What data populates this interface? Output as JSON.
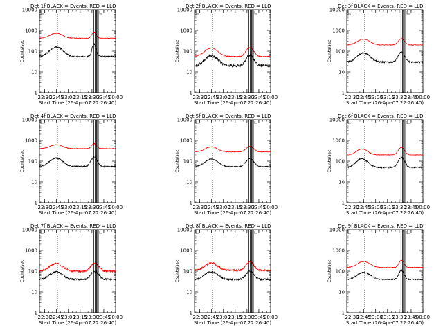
{
  "figure": {
    "start_time_label": "Start Time (26-Apr-07 22:26:40)",
    "ylabel": "Counts/sec",
    "x_tick_labels": [
      "22:30",
      "22:45",
      "23:00",
      "23:15",
      "23:30",
      "23:45",
      "00:00"
    ],
    "y_tick_labels": [
      "1",
      "10",
      "100",
      "1000",
      "10000"
    ]
  },
  "chart_data": [
    {
      "type": "line",
      "title": "Det 1f BLACK = Events, RED = LLD",
      "xlabel": "Start Time (26-Apr-07 22:26:40)",
      "ylabel": "Counts/sec",
      "x_range_min": [
        -3.33,
        93.33
      ],
      "y_log_range": [
        1,
        10000
      ],
      "y_scale": "log",
      "x_ticks_min": [
        3.33,
        18.33,
        33.33,
        48.33,
        63.33,
        78.33,
        93.33
      ],
      "vertical_markers_min": [
        19.5,
        68.6,
        69.4
      ],
      "boxes_min": [
        [
          65.5,
          67.3
        ],
        [
          69.7,
          71.4
        ]
      ],
      "series": [
        {
          "name": "Events",
          "color": "#000000",
          "base": 55,
          "peak1_center": 18,
          "peak1_amp": 1.9,
          "peak1_width": 10,
          "peak2_center": 66,
          "peak2_amp": 3.1,
          "peak2_width": 3,
          "noise": 0.08
        },
        {
          "name": "LLD",
          "color": "#ff0000",
          "base": 420,
          "peak1_center": 18,
          "peak1_amp": 0.75,
          "peak1_width": 10,
          "peak2_center": 66,
          "peak2_amp": 1.0,
          "peak2_width": 3.5,
          "noise": 0.03
        }
      ]
    },
    {
      "type": "line",
      "title": "Det 2f BLACK = Events, RED = LLD",
      "xlabel": "Start Time (26-Apr-07 22:26:40)",
      "ylabel": "Counts/sec",
      "x_range_min": [
        -3.33,
        93.33
      ],
      "y_log_range": [
        1,
        10000
      ],
      "y_scale": "log",
      "x_ticks_min": [
        3.33,
        18.33,
        33.33,
        48.33,
        63.33,
        78.33,
        93.33
      ],
      "vertical_markers_min": [
        19.5,
        68.6,
        69.4
      ],
      "boxes_min": [
        [
          65.5,
          67.3
        ],
        [
          69.7,
          71.4
        ]
      ],
      "series": [
        {
          "name": "Events",
          "color": "#000000",
          "base": 20,
          "peak1_center": 18,
          "peak1_amp": 2.0,
          "peak1_width": 10,
          "peak2_center": 67,
          "peak2_amp": 2.2,
          "peak2_width": 6,
          "noise": 0.14
        },
        {
          "name": "LLD",
          "color": "#ff0000",
          "base": 55,
          "peak1_center": 18,
          "peak1_amp": 1.55,
          "peak1_width": 10,
          "peak2_center": 67,
          "peak2_amp": 1.7,
          "peak2_width": 6,
          "noise": 0.04
        }
      ]
    },
    {
      "type": "line",
      "title": "Det 3f BLACK = Events, RED = LLD",
      "xlabel": "Start Time (26-Apr-07 22:26:40)",
      "ylabel": "Counts/sec",
      "x_range_min": [
        -3.33,
        93.33
      ],
      "y_log_range": [
        1,
        10000
      ],
      "y_scale": "log",
      "x_ticks_min": [
        3.33,
        18.33,
        33.33,
        48.33,
        63.33,
        78.33,
        93.33
      ],
      "vertical_markers_min": [
        19.5,
        68.6,
        69.4
      ],
      "boxes_min": [
        [
          65.5,
          67.3
        ],
        [
          69.7,
          71.4
        ]
      ],
      "series": [
        {
          "name": "Events",
          "color": "#000000",
          "base": 30,
          "peak1_center": 18,
          "peak1_amp": 1.7,
          "peak1_width": 10,
          "peak2_center": 66,
          "peak2_amp": 2.0,
          "peak2_width": 5,
          "noise": 0.08
        },
        {
          "name": "LLD",
          "color": "#ff0000",
          "base": 200,
          "peak1_center": 18,
          "peak1_amp": 0.9,
          "peak1_width": 10,
          "peak2_center": 66,
          "peak2_amp": 1.0,
          "peak2_width": 5,
          "noise": 0.03
        }
      ]
    },
    {
      "type": "line",
      "title": "Det 4f BLACK = Events, RED = LLD",
      "xlabel": "Start Time (26-Apr-07 22:26:40)",
      "ylabel": "Counts/sec",
      "x_range_min": [
        -3.33,
        93.33
      ],
      "y_log_range": [
        1,
        10000
      ],
      "y_scale": "log",
      "x_ticks_min": [
        3.33,
        18.33,
        33.33,
        48.33,
        63.33,
        78.33,
        93.33
      ],
      "vertical_markers_min": [
        19.5,
        68.6,
        69.4
      ],
      "boxes_min": [
        [
          65.5,
          67.3
        ],
        [
          69.7,
          71.4
        ]
      ],
      "series": [
        {
          "name": "Events",
          "color": "#000000",
          "base": 55,
          "peak1_center": 18,
          "peak1_amp": 1.55,
          "peak1_width": 10,
          "peak2_center": 66,
          "peak2_amp": 1.8,
          "peak2_width": 5,
          "noise": 0.07
        },
        {
          "name": "LLD",
          "color": "#ff0000",
          "base": 400,
          "peak1_center": 18,
          "peak1_amp": 0.55,
          "peak1_width": 10,
          "peak2_center": 66,
          "peak2_amp": 0.75,
          "peak2_width": 4,
          "noise": 0.03
        }
      ]
    },
    {
      "type": "line",
      "title": "Det 5f BLACK = Events, RED = LLD",
      "xlabel": "Start Time (26-Apr-07 22:26:40)",
      "ylabel": "Counts/sec",
      "x_range_min": [
        -3.33,
        93.33
      ],
      "y_log_range": [
        1,
        10000
      ],
      "y_scale": "log",
      "x_ticks_min": [
        3.33,
        18.33,
        33.33,
        48.33,
        63.33,
        78.33,
        93.33
      ],
      "vertical_markers_min": [
        19.5,
        68.6,
        69.4
      ],
      "boxes_min": [
        [
          65.5,
          67.3
        ],
        [
          69.7,
          71.4
        ]
      ],
      "series": [
        {
          "name": "Events",
          "color": "#000000",
          "base": 55,
          "peak1_center": 18,
          "peak1_amp": 1.3,
          "peak1_width": 10,
          "peak2_center": 67,
          "peak2_amp": 1.4,
          "peak2_width": 6,
          "noise": 0.05
        },
        {
          "name": "LLD",
          "color": "#ff0000",
          "base": 280,
          "peak1_center": 18,
          "peak1_amp": 0.75,
          "peak1_width": 10,
          "peak2_center": 67,
          "peak2_amp": 0.85,
          "peak2_width": 6,
          "noise": 0.03
        }
      ]
    },
    {
      "type": "line",
      "title": "Det 6f BLACK = Events, RED = LLD",
      "xlabel": "Start Time (26-Apr-07 22:26:40)",
      "ylabel": "Counts/sec",
      "x_range_min": [
        -3.33,
        93.33
      ],
      "y_log_range": [
        1,
        10000
      ],
      "y_scale": "log",
      "x_ticks_min": [
        3.33,
        18.33,
        33.33,
        48.33,
        63.33,
        78.33,
        93.33
      ],
      "vertical_markers_min": [
        19.5,
        68.6,
        69.4
      ],
      "boxes_min": [
        [
          65.5,
          67.3
        ],
        [
          69.7,
          71.4
        ]
      ],
      "series": [
        {
          "name": "Events",
          "color": "#000000",
          "base": 50,
          "peak1_center": 16,
          "peak1_amp": 1.6,
          "peak1_width": 9,
          "peak2_center": 66,
          "peak2_amp": 2.0,
          "peak2_width": 5,
          "noise": 0.07
        },
        {
          "name": "LLD",
          "color": "#ff0000",
          "base": 200,
          "peak1_center": 16,
          "peak1_amp": 0.9,
          "peak1_width": 9,
          "peak2_center": 66,
          "peak2_amp": 1.25,
          "peak2_width": 5,
          "noise": 0.03
        }
      ]
    },
    {
      "type": "line",
      "title": "Det 7f BLACK = Events, RED = LLD",
      "xlabel": "Start Time (26-Apr-07 22:26:40)",
      "ylabel": "Counts/sec",
      "x_range_min": [
        -3.33,
        93.33
      ],
      "y_log_range": [
        1,
        10000
      ],
      "y_scale": "log",
      "x_ticks_min": [
        3.33,
        18.33,
        33.33,
        48.33,
        63.33,
        78.33,
        93.33
      ],
      "vertical_markers_min": [
        19.5,
        68.6,
        69.4
      ],
      "boxes_min": [
        [
          65.5,
          67.3
        ],
        [
          69.7,
          71.4
        ]
      ],
      "series": [
        {
          "name": "Events",
          "color": "#000000",
          "base": 40,
          "peak1_center": 18,
          "peak1_amp": 1.35,
          "peak1_width": 10,
          "peak2_center": 67,
          "peak2_amp": 1.5,
          "peak2_width": 6,
          "noise": 0.1
        },
        {
          "name": "LLD",
          "color": "#ff0000",
          "base": 100,
          "peak1_center": 18,
          "peak1_amp": 1.35,
          "peak1_width": 10,
          "peak2_center": 67,
          "peak2_amp": 1.45,
          "peak2_width": 6,
          "noise": 0.1
        }
      ]
    },
    {
      "type": "line",
      "title": "Det 8f BLACK = Events, RED = LLD",
      "xlabel": "Start Time (26-Apr-07 22:26:40)",
      "ylabel": "Counts/sec",
      "x_range_min": [
        -3.33,
        93.33
      ],
      "y_log_range": [
        1,
        10000
      ],
      "y_scale": "log",
      "x_ticks_min": [
        3.33,
        18.33,
        33.33,
        48.33,
        63.33,
        78.33,
        93.33
      ],
      "vertical_markers_min": [
        19.5,
        68.6,
        69.4
      ],
      "boxes_min": [
        [
          65.5,
          67.3
        ],
        [
          69.7,
          71.4
        ]
      ],
      "series": [
        {
          "name": "Events",
          "color": "#000000",
          "base": 40,
          "peak1_center": 18,
          "peak1_amp": 1.35,
          "peak1_width": 10,
          "peak2_center": 67,
          "peak2_amp": 1.5,
          "peak2_width": 6,
          "noise": 0.1
        },
        {
          "name": "LLD",
          "color": "#ff0000",
          "base": 110,
          "peak1_center": 18,
          "peak1_amp": 1.25,
          "peak1_width": 10,
          "peak2_center": 67,
          "peak2_amp": 1.55,
          "peak2_width": 6,
          "noise": 0.1
        }
      ]
    },
    {
      "type": "line",
      "title": "Det 9f BLACK = Events, RED = LLD",
      "xlabel": "Start Time (26-Apr-07 22:26:40)",
      "ylabel": "Counts/sec",
      "x_range_min": [
        -3.33,
        93.33
      ],
      "y_log_range": [
        1,
        10000
      ],
      "y_scale": "log",
      "x_ticks_min": [
        3.33,
        18.33,
        33.33,
        48.33,
        63.33,
        78.33,
        93.33
      ],
      "vertical_markers_min": [
        19.5,
        68.6,
        69.4
      ],
      "boxes_min": [
        [
          65.5,
          67.3
        ],
        [
          69.7,
          71.4
        ]
      ],
      "series": [
        {
          "name": "Events",
          "color": "#000000",
          "base": 40,
          "peak1_center": 18,
          "peak1_amp": 1.2,
          "peak1_width": 10,
          "peak2_center": 66,
          "peak2_amp": 1.75,
          "peak2_width": 4,
          "noise": 0.06
        },
        {
          "name": "LLD",
          "color": "#ff0000",
          "base": 150,
          "peak1_center": 18,
          "peak1_amp": 0.95,
          "peak1_width": 10,
          "peak2_center": 66,
          "peak2_amp": 1.2,
          "peak2_width": 4,
          "noise": 0.03
        }
      ]
    }
  ]
}
